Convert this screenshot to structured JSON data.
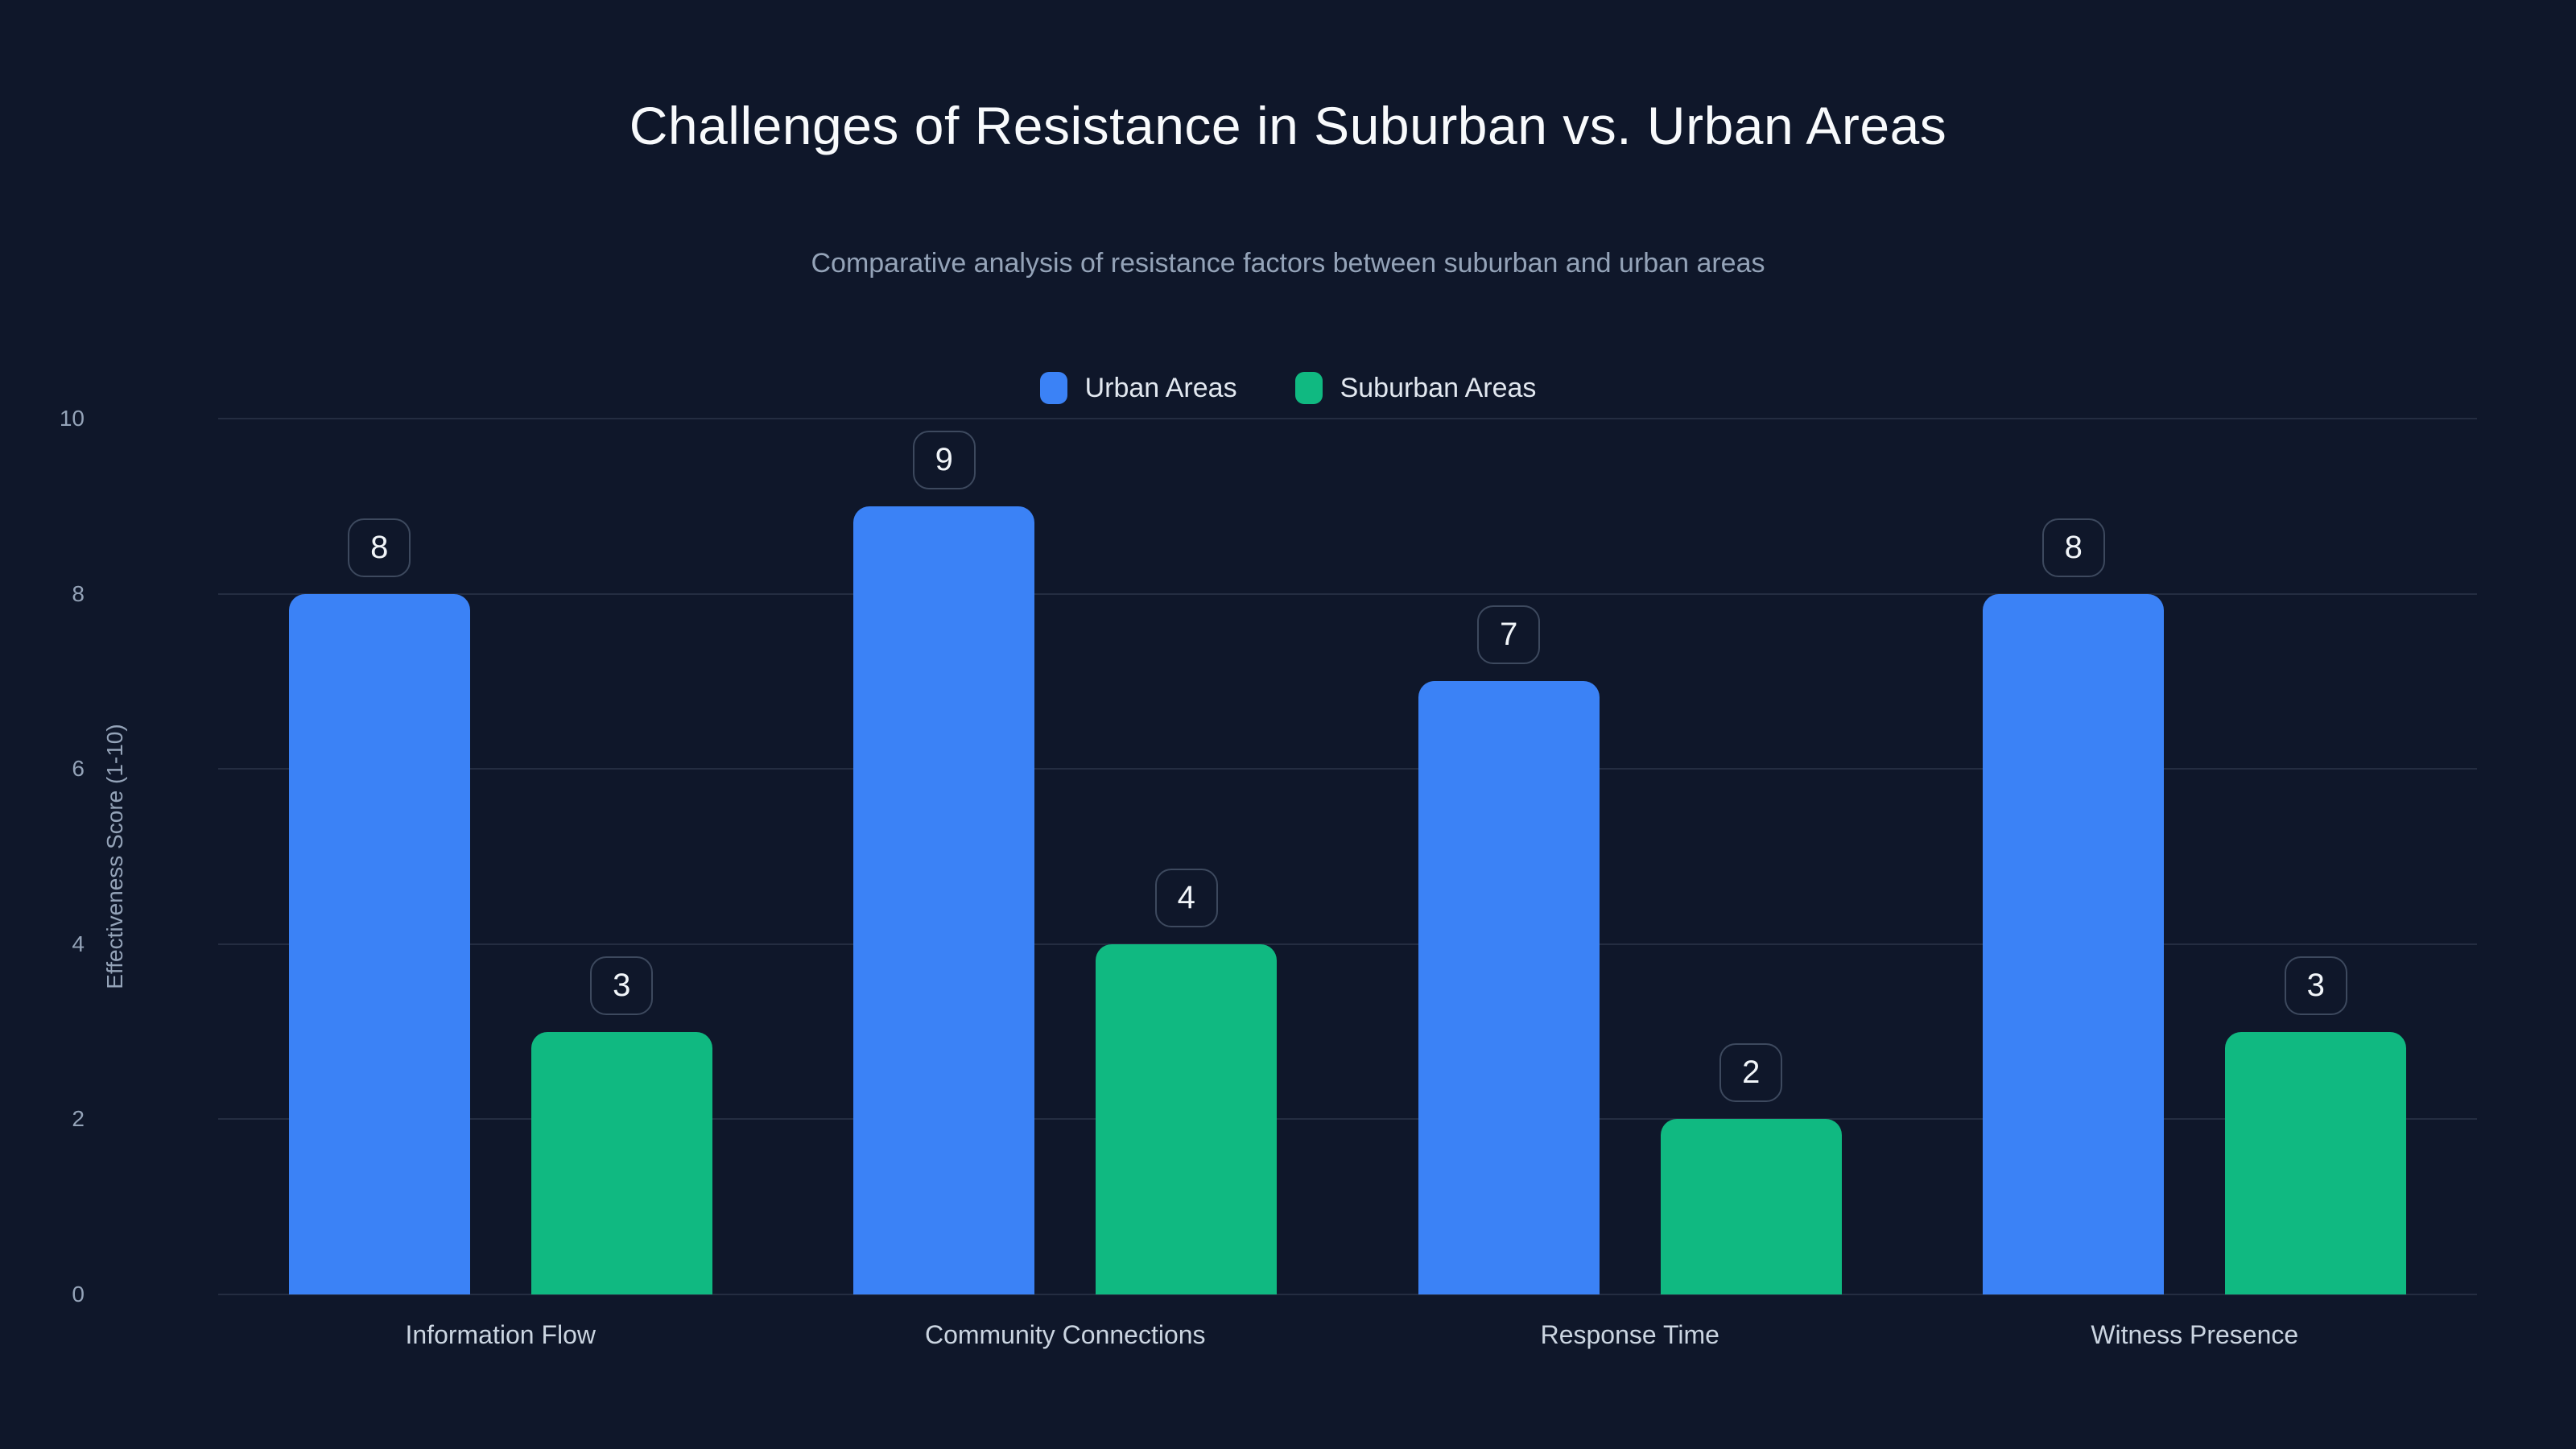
{
  "chart_data": {
    "type": "bar",
    "title": "Challenges of Resistance in Suburban vs. Urban Areas",
    "subtitle": "Comparative analysis of resistance factors between suburban and urban areas",
    "categories": [
      "Information Flow",
      "Community Connections",
      "Response Time",
      "Witness Presence"
    ],
    "series": [
      {
        "name": "Urban Areas",
        "color": "#3b82f6",
        "values": [
          8,
          9,
          7,
          8
        ]
      },
      {
        "name": "Suburban Areas",
        "color": "#10b981",
        "values": [
          3,
          4,
          2,
          3
        ]
      }
    ],
    "xlabel": "",
    "ylabel": "Effectiveness Score (1-10)",
    "ylim": [
      0,
      10
    ],
    "yticks": [
      0,
      2,
      4,
      6,
      8,
      10
    ],
    "grid": true,
    "legend_position": "top-center",
    "value_labels": true
  },
  "theme": {
    "background": "#0f172a",
    "grid_color": "rgba(148,163,184,0.16)",
    "title_color": "#f8fafc",
    "subtitle_color": "#94a3b8",
    "tick_color": "#94a3b8",
    "category_label_color": "#cbd5e1",
    "legend_text_color": "#e2e8f0",
    "badge_border_color": "#3d495e",
    "badge_text_color": "#f1f5f9"
  }
}
